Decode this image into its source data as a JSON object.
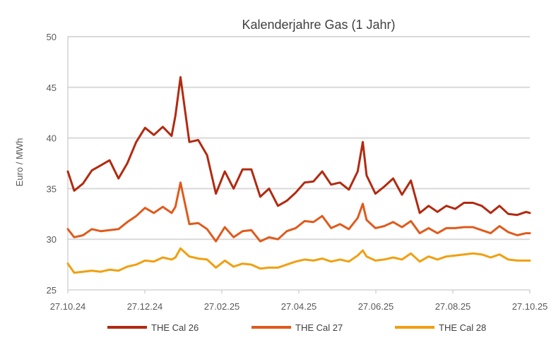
{
  "chart_data": {
    "type": "line",
    "title": "Kalenderjahre Gas (1 Jahr)",
    "xlabel": "",
    "ylabel": "Euro / MWh",
    "ylim": [
      25,
      50
    ],
    "yticks": [
      25,
      30,
      35,
      40,
      45,
      50
    ],
    "xlim": [
      "2024-10-27",
      "2025-10-27"
    ],
    "xticks": [
      "27.10.24",
      "27.12.24",
      "27.02.25",
      "27.04.25",
      "27.06.25",
      "27.08.25",
      "27.10.25"
    ],
    "grid": true,
    "legend_position": "bottom",
    "x": [
      "2024-10-27",
      "2024-11-01",
      "2024-11-08",
      "2024-11-15",
      "2024-11-22",
      "2024-11-29",
      "2024-12-06",
      "2024-12-13",
      "2024-12-20",
      "2024-12-27",
      "2025-01-03",
      "2025-01-10",
      "2025-01-17",
      "2025-01-20",
      "2025-01-24",
      "2025-01-31",
      "2025-02-07",
      "2025-02-14",
      "2025-02-21",
      "2025-02-28",
      "2025-03-07",
      "2025-03-14",
      "2025-03-21",
      "2025-03-28",
      "2025-04-04",
      "2025-04-11",
      "2025-04-18",
      "2025-04-25",
      "2025-05-02",
      "2025-05-09",
      "2025-05-16",
      "2025-05-23",
      "2025-05-30",
      "2025-06-06",
      "2025-06-13",
      "2025-06-17",
      "2025-06-20",
      "2025-06-27",
      "2025-07-04",
      "2025-07-11",
      "2025-07-18",
      "2025-07-25",
      "2025-08-01",
      "2025-08-08",
      "2025-08-15",
      "2025-08-22",
      "2025-08-29",
      "2025-09-05",
      "2025-09-12",
      "2025-09-19",
      "2025-09-26",
      "2025-10-03",
      "2025-10-10",
      "2025-10-17",
      "2025-10-24",
      "2025-10-27"
    ],
    "series": [
      {
        "name": "THE Cal 26",
        "color": "#b22a10",
        "values": [
          36.7,
          34.8,
          35.5,
          36.8,
          37.3,
          37.8,
          36.0,
          37.5,
          39.6,
          41.0,
          40.3,
          41.1,
          40.2,
          42.2,
          46.0,
          39.6,
          39.8,
          38.3,
          34.5,
          36.7,
          35.0,
          36.9,
          36.9,
          34.2,
          35.0,
          33.3,
          33.8,
          34.6,
          35.6,
          35.7,
          36.7,
          35.4,
          35.6,
          34.9,
          36.7,
          39.6,
          36.3,
          34.5,
          35.2,
          36.0,
          34.4,
          35.8,
          32.6,
          33.3,
          32.7,
          33.3,
          33.0,
          33.6,
          33.6,
          33.3,
          32.6,
          33.3,
          32.5,
          32.4,
          32.7,
          32.6
        ]
      },
      {
        "name": "THE Cal 27",
        "color": "#e05a1c",
        "values": [
          31.0,
          30.2,
          30.4,
          31.0,
          30.8,
          30.9,
          31.0,
          31.7,
          32.3,
          33.1,
          32.6,
          33.2,
          32.6,
          33.2,
          35.6,
          31.5,
          31.6,
          31.0,
          29.8,
          31.2,
          30.2,
          30.8,
          30.9,
          29.8,
          30.2,
          30.0,
          30.8,
          31.1,
          31.8,
          31.7,
          32.3,
          31.1,
          31.5,
          31.0,
          32.1,
          33.5,
          31.9,
          31.1,
          31.3,
          31.7,
          31.2,
          31.8,
          30.6,
          31.1,
          30.6,
          31.1,
          31.1,
          31.2,
          31.2,
          30.9,
          30.6,
          31.3,
          30.7,
          30.4,
          30.6,
          30.6
        ]
      },
      {
        "name": "THE Cal 28",
        "color": "#f0a010",
        "values": [
          27.6,
          26.7,
          26.8,
          26.9,
          26.8,
          27.0,
          26.9,
          27.3,
          27.5,
          27.9,
          27.8,
          28.2,
          28.0,
          28.2,
          29.1,
          28.3,
          28.1,
          28.0,
          27.2,
          27.9,
          27.3,
          27.6,
          27.5,
          27.1,
          27.2,
          27.2,
          27.5,
          27.8,
          28.0,
          27.9,
          28.1,
          27.8,
          28.0,
          27.8,
          28.4,
          28.9,
          28.3,
          27.9,
          28.0,
          28.2,
          28.0,
          28.6,
          27.8,
          28.3,
          28.0,
          28.3,
          28.4,
          28.5,
          28.6,
          28.5,
          28.2,
          28.5,
          28.0,
          27.9,
          27.9,
          27.9
        ]
      }
    ]
  },
  "colors": {
    "grid": "#d9d9d9",
    "axis": "#bfbfbf",
    "text": "#595959",
    "title": "#404040"
  }
}
